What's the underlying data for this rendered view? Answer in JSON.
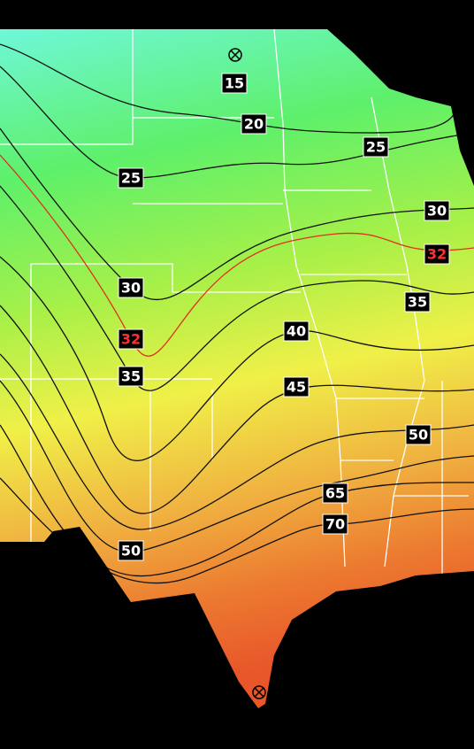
{
  "contour_labels": [
    "15",
    "20",
    "25",
    "25",
    "30",
    "30",
    "32",
    "32",
    "35",
    "35",
    "40",
    "45",
    "50",
    "50",
    "65",
    "70"
  ]
}
